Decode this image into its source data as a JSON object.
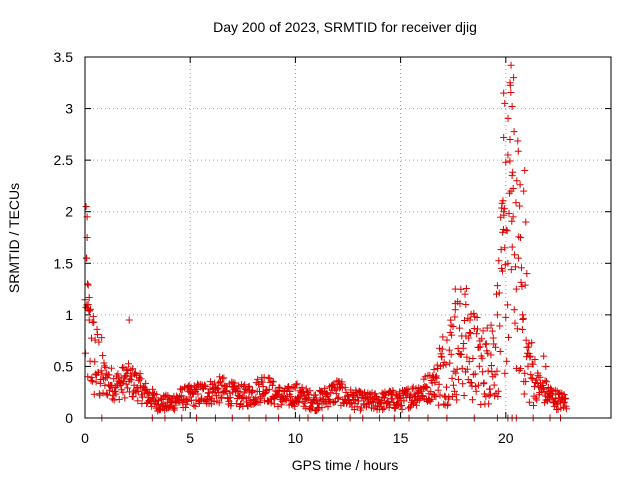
{
  "chart_data": {
    "type": "scatter",
    "title": "Day 200 of 2023, SRMTID for receiver djig",
    "xlabel": "GPS time / hours",
    "ylabel": "SRMTID / TECUs",
    "xlim": [
      0,
      25
    ],
    "ylim": [
      0,
      3.5
    ],
    "x_ticks": [
      0,
      5,
      10,
      15,
      20
    ],
    "x_tick_labels": [
      "0",
      "5",
      "10",
      "15",
      "20"
    ],
    "y_ticks": [
      0,
      0.5,
      1,
      1.5,
      2,
      2.5,
      3,
      3.5
    ],
    "y_tick_labels": [
      "0",
      "0.5",
      "1",
      "1.5",
      "2",
      "2.5",
      "3",
      "3.5"
    ],
    "grid": true,
    "marker": "+",
    "marker_color": "#e00000",
    "baseline_profile": [
      [
        0.0,
        0.85
      ],
      [
        0.5,
        0.5
      ],
      [
        1.0,
        0.35
      ],
      [
        1.5,
        0.3
      ],
      [
        2.0,
        0.35
      ],
      [
        2.5,
        0.3
      ],
      [
        3.0,
        0.2
      ],
      [
        3.5,
        0.14
      ],
      [
        4.0,
        0.13
      ],
      [
        4.5,
        0.18
      ],
      [
        5.0,
        0.2
      ],
      [
        5.5,
        0.22
      ],
      [
        6.0,
        0.24
      ],
      [
        6.5,
        0.26
      ],
      [
        7.0,
        0.22
      ],
      [
        7.5,
        0.2
      ],
      [
        8.0,
        0.22
      ],
      [
        8.5,
        0.3
      ],
      [
        9.0,
        0.22
      ],
      [
        9.5,
        0.18
      ],
      [
        10.0,
        0.22
      ],
      [
        10.5,
        0.18
      ],
      [
        11.0,
        0.15
      ],
      [
        11.5,
        0.2
      ],
      [
        12.0,
        0.25
      ],
      [
        12.5,
        0.18
      ],
      [
        13.0,
        0.16
      ],
      [
        13.5,
        0.15
      ],
      [
        14.0,
        0.15
      ],
      [
        14.5,
        0.17
      ],
      [
        15.0,
        0.16
      ],
      [
        15.5,
        0.2
      ],
      [
        16.0,
        0.25
      ],
      [
        16.5,
        0.3
      ],
      [
        17.0,
        0.45
      ],
      [
        17.5,
        0.6
      ],
      [
        18.0,
        0.7
      ],
      [
        18.5,
        0.55
      ],
      [
        19.0,
        0.45
      ],
      [
        19.5,
        0.6
      ],
      [
        20.0,
        1.4
      ],
      [
        20.3,
        1.9
      ],
      [
        20.7,
        1.2
      ],
      [
        21.0,
        0.5
      ],
      [
        21.5,
        0.3
      ],
      [
        22.0,
        0.22
      ],
      [
        22.5,
        0.16
      ],
      [
        22.9,
        0.15
      ]
    ],
    "highlighted_points": [
      {
        "x": 0.05,
        "y": 2.05
      },
      {
        "x": 0.1,
        "y": 1.95
      },
      {
        "x": 0.1,
        "y": 1.75
      },
      {
        "x": 0.08,
        "y": 1.55
      },
      {
        "x": 0.12,
        "y": 1.3
      },
      {
        "x": 0.15,
        "y": 1.1
      },
      {
        "x": 0.2,
        "y": 0.95
      },
      {
        "x": 2.1,
        "y": 0.95
      },
      {
        "x": 17.6,
        "y": 1.05
      },
      {
        "x": 17.6,
        "y": 1.25
      },
      {
        "x": 17.4,
        "y": 0.9
      },
      {
        "x": 19.9,
        "y": 3.15
      },
      {
        "x": 19.95,
        "y": 3.05
      },
      {
        "x": 19.9,
        "y": 2.72
      },
      {
        "x": 20.25,
        "y": 3.42
      },
      {
        "x": 20.2,
        "y": 3.25
      },
      {
        "x": 20.3,
        "y": 3.02
      },
      {
        "x": 20.2,
        "y": 2.7
      },
      {
        "x": 20.1,
        "y": 2.55
      },
      {
        "x": 20.3,
        "y": 2.35
      },
      {
        "x": 20.25,
        "y": 2.2
      },
      {
        "x": 20.0,
        "y": 2.48
      },
      {
        "x": 20.35,
        "y": 1.95
      },
      {
        "x": 19.9,
        "y": 2.0
      },
      {
        "x": 20.9,
        "y": 2.4
      },
      {
        "x": 20.85,
        "y": 2.2
      },
      {
        "x": 20.95,
        "y": 1.9
      },
      {
        "x": 20.7,
        "y": 1.75
      },
      {
        "x": 21.0,
        "y": 1.4
      },
      {
        "x": 19.85,
        "y": 1.8
      },
      {
        "x": 19.95,
        "y": 1.65
      },
      {
        "x": 20.1,
        "y": 1.5
      },
      {
        "x": 19.8,
        "y": 1.45
      },
      {
        "x": 20.6,
        "y": 1.55
      },
      {
        "x": 20.5,
        "y": 1.25
      },
      {
        "x": 20.4,
        "y": 1.05
      },
      {
        "x": 19.6,
        "y": 1.0
      },
      {
        "x": 19.3,
        "y": 0.9
      },
      {
        "x": 18.1,
        "y": 1.1
      },
      {
        "x": 18.3,
        "y": 0.95
      },
      {
        "x": 20.8,
        "y": 1.0
      },
      {
        "x": 21.1,
        "y": 0.72
      },
      {
        "x": 21.8,
        "y": 0.6
      },
      {
        "x": 21.9,
        "y": 0.5
      }
    ],
    "zero_points_x": [
      0.8,
      3.2,
      3.8,
      4.6,
      5.3,
      6.2,
      7.0,
      7.8,
      8.6,
      9.2,
      10.2,
      10.6,
      11.3,
      12.0,
      12.6,
      13.2,
      14.0,
      14.7,
      15.4,
      16.3,
      17.2,
      18.5,
      19.6,
      20.1,
      20.3,
      20.5,
      21.3,
      22.1,
      22.6
    ]
  }
}
